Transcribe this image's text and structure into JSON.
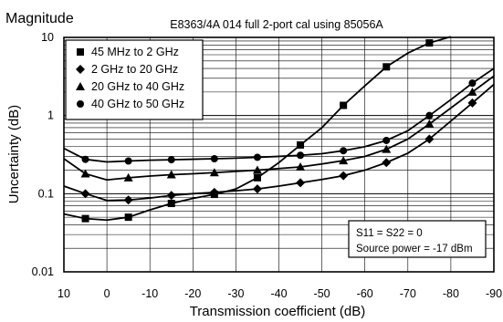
{
  "chart_data": {
    "type": "line",
    "title": "E8363/4A  014 full 2-port cal using 85056A",
    "corner_label": "Magnitude",
    "xlabel": "Transmission coefficient (dB)",
    "ylabel": "Uncertainty (dB)",
    "xlim": [
      10,
      -90
    ],
    "ylim": [
      0.01,
      10
    ],
    "yscale": "log",
    "x_ticks": [
      "10",
      "0",
      "-10",
      "-20",
      "-30",
      "-40",
      "-50",
      "-60",
      "-70",
      "-80",
      "-90"
    ],
    "y_ticks": [
      "0.01",
      "0.1",
      "1",
      "10"
    ],
    "grid": true,
    "legend_position": "top-left",
    "annotation": [
      "S11 = S22 = 0",
      "Source power = -17 dBm"
    ],
    "series": [
      {
        "name": "45 MHz to 2 GHz",
        "marker": "square",
        "x": [
          10,
          5,
          0,
          -5,
          -10,
          -15,
          -20,
          -25,
          -30,
          -35,
          -40,
          -45,
          -50,
          -55,
          -60,
          -65,
          -70,
          -75,
          -80
        ],
        "y": [
          0.055,
          0.048,
          0.046,
          0.05,
          0.062,
          0.075,
          0.087,
          0.098,
          0.115,
          0.16,
          0.25,
          0.42,
          0.7,
          1.35,
          2.4,
          4.2,
          6.3,
          8.5,
          10.2
        ]
      },
      {
        "name": "2 GHz to 20 GHz",
        "marker": "diamond",
        "x": [
          10,
          5,
          0,
          -5,
          -10,
          -15,
          -20,
          -25,
          -30,
          -35,
          -40,
          -45,
          -50,
          -55,
          -60,
          -65,
          -70,
          -75,
          -80,
          -85,
          -90
        ],
        "y": [
          0.125,
          0.1,
          0.082,
          0.083,
          0.088,
          0.095,
          0.1,
          0.104,
          0.109,
          0.115,
          0.125,
          0.138,
          0.152,
          0.17,
          0.2,
          0.25,
          0.33,
          0.5,
          0.85,
          1.45,
          2.5
        ]
      },
      {
        "name": "20 GHz to 40 GHz",
        "marker": "triangle",
        "x": [
          10,
          5,
          0,
          -5,
          -10,
          -15,
          -20,
          -25,
          -30,
          -35,
          -40,
          -45,
          -50,
          -55,
          -60,
          -65,
          -70,
          -75,
          -80,
          -85,
          -90
        ],
        "y": [
          0.28,
          0.18,
          0.15,
          0.16,
          0.168,
          0.175,
          0.18,
          0.186,
          0.193,
          0.2,
          0.21,
          0.22,
          0.24,
          0.265,
          0.3,
          0.37,
          0.5,
          0.78,
          1.25,
          2.0,
          3.2
        ]
      },
      {
        "name": "40 GHz to 50 GHz",
        "marker": "circle",
        "x": [
          10,
          5,
          0,
          -5,
          -10,
          -15,
          -20,
          -25,
          -30,
          -35,
          -40,
          -45,
          -50,
          -55,
          -60,
          -65,
          -70,
          -75,
          -80,
          -85,
          -90
        ],
        "y": [
          0.38,
          0.275,
          0.255,
          0.262,
          0.268,
          0.272,
          0.276,
          0.28,
          0.285,
          0.292,
          0.3,
          0.31,
          0.325,
          0.355,
          0.4,
          0.48,
          0.64,
          1.0,
          1.6,
          2.6,
          4.0
        ]
      }
    ]
  }
}
